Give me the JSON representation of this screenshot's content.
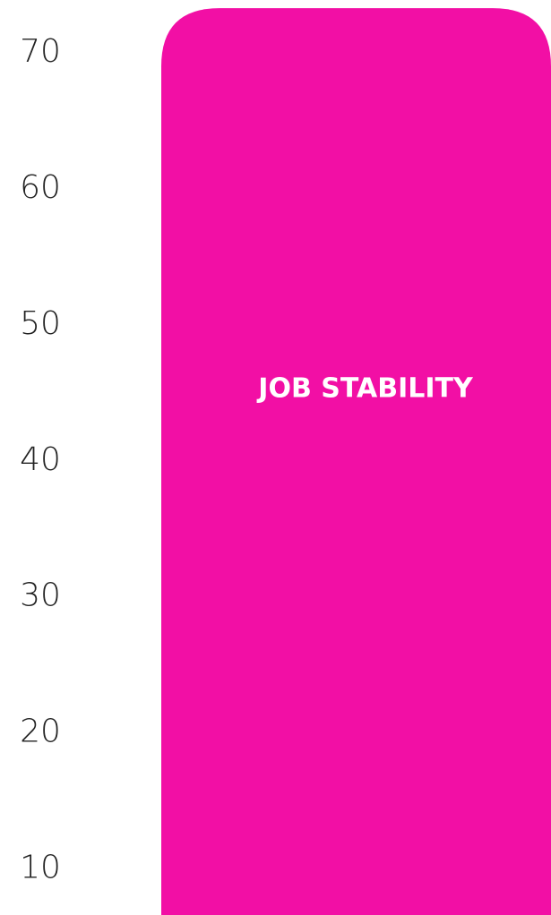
{
  "chart_data": {
    "type": "bar",
    "categories": [
      "JOB STABILITY"
    ],
    "values": [
      73.3
    ],
    "color": "#f20fa5",
    "ylim": [
      6.6,
      73.9
    ],
    "yticks": [
      10,
      20,
      30,
      40,
      50,
      60,
      70
    ]
  }
}
